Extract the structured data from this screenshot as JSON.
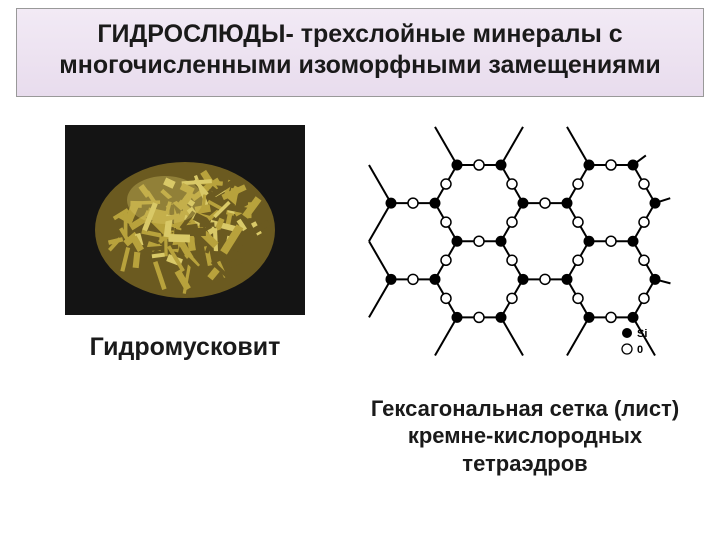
{
  "title": "ГИДРОСЛЮДЫ- трехслойные минералы с многочисленными изоморфными замещениями",
  "left": {
    "caption": "Гидромусковит"
  },
  "right": {
    "caption": "Гексагональная сетка (лист) кремне-кислородных тетраэдров",
    "legend_si": "Si",
    "legend_o": "0"
  },
  "hex": {
    "structure_type": "hexagonal-net",
    "vertex_fill": "#000000",
    "edge_midpoint_fill": "#ffffff",
    "edge_midpoint_stroke": "#000000",
    "line_color": "#000000",
    "line_width": 2,
    "hex_side": 44,
    "vertex_radius": 5.5,
    "midpoint_radius": 5,
    "legend_font_size": 11
  },
  "mineral": {
    "bg": "#141414",
    "cluster_fill": "#b8a23c",
    "cluster_dark": "#6b5a20",
    "cluster_light": "#d9c968"
  }
}
